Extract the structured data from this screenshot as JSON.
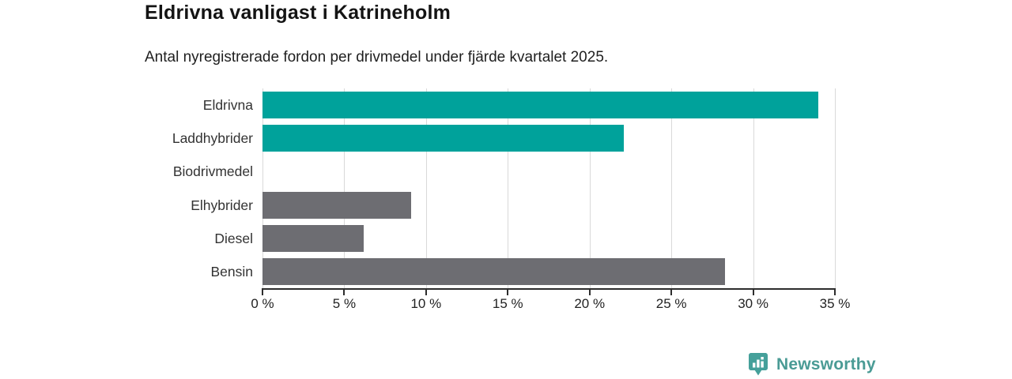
{
  "chart_data": {
    "type": "bar",
    "orientation": "horizontal",
    "title": "Eldrivna vanligast i Katrineholm",
    "subtitle": "Antal nyregistrerade fordon per drivmedel under fjärde kvartalet 2025.",
    "categories": [
      "Eldrivna",
      "Laddhybrider",
      "Biodrivmedel",
      "Elhybrider",
      "Diesel",
      "Bensin"
    ],
    "values": [
      34.0,
      22.1,
      0,
      9.1,
      6.2,
      28.3
    ],
    "unit": "%",
    "xlim": [
      0,
      35
    ],
    "x_ticks": [
      0,
      5,
      10,
      15,
      20,
      25,
      30,
      35
    ],
    "x_tick_labels": [
      "0 %",
      "5 %",
      "10 %",
      "15 %",
      "20 %",
      "25 %",
      "30 %",
      "35 %"
    ],
    "bar_colors": [
      "#00a29b",
      "#00a29b",
      "#6d6d72",
      "#6d6d72",
      "#6d6d72",
      "#6d6d72"
    ],
    "grid": true,
    "legend": "none"
  },
  "colors": {
    "highlight_teal": "#00a29b",
    "neutral_gray": "#6d6d72",
    "gridline": "#d9d9d9",
    "axis": "#2d2d2d",
    "logo_teal": "#45a09a",
    "logo_text": "#4a9b95"
  },
  "footer": {
    "brand": "Newsworthy",
    "logo_icon": "bar-chart-pin-icon"
  }
}
